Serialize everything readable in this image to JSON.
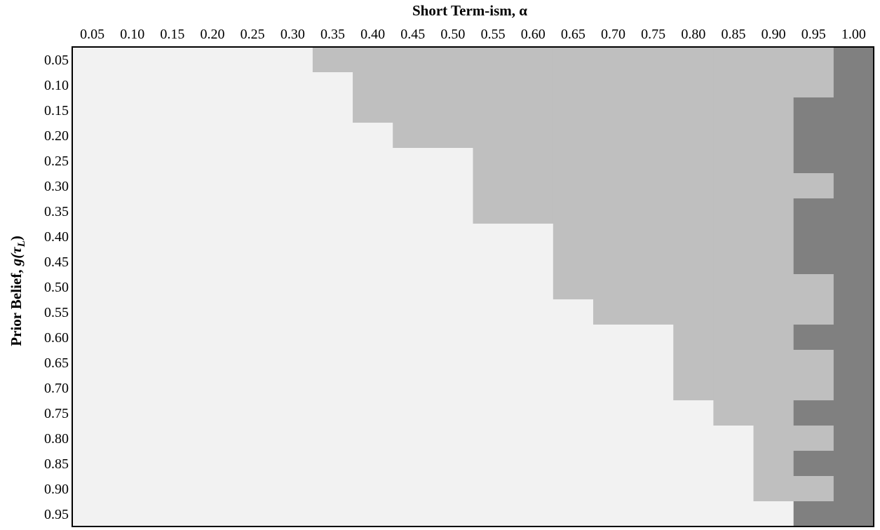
{
  "chart_data": {
    "type": "heatmap",
    "title": "",
    "xlabel": "Short Term-ism, α",
    "ylabel_text": "Prior Belief, ",
    "ylabel_math": "g(τ",
    "ylabel_sub": "L",
    "ylabel_close": ")",
    "x_position": "top",
    "legend": "none",
    "grid": false,
    "x": [
      "0.05",
      "0.10",
      "0.15",
      "0.20",
      "0.25",
      "0.30",
      "0.35",
      "0.40",
      "0.45",
      "0.50",
      "0.55",
      "0.60",
      "0.65",
      "0.70",
      "0.75",
      "0.80",
      "0.85",
      "0.90",
      "0.95",
      "1.00"
    ],
    "y": [
      "0.05",
      "0.10",
      "0.15",
      "0.20",
      "0.25",
      "0.30",
      "0.35",
      "0.40",
      "0.45",
      "0.50",
      "0.55",
      "0.60",
      "0.65",
      "0.70",
      "0.75",
      "0.80",
      "0.85",
      "0.90",
      "0.95"
    ],
    "levels": {
      "0": "#f2f2f2",
      "1": "#bfbfbf",
      "2": "#808080"
    },
    "values": [
      [
        0,
        0,
        0,
        0,
        0,
        0,
        1,
        1,
        1,
        1,
        1,
        1,
        1,
        1,
        1,
        1,
        1,
        1,
        1,
        2
      ],
      [
        0,
        0,
        0,
        0,
        0,
        0,
        0,
        1,
        1,
        1,
        1,
        1,
        1,
        1,
        1,
        1,
        1,
        1,
        1,
        2
      ],
      [
        0,
        0,
        0,
        0,
        0,
        0,
        0,
        1,
        1,
        1,
        1,
        1,
        1,
        1,
        1,
        1,
        1,
        1,
        2,
        2
      ],
      [
        0,
        0,
        0,
        0,
        0,
        0,
        0,
        0,
        1,
        1,
        1,
        1,
        1,
        1,
        1,
        1,
        1,
        1,
        2,
        2
      ],
      [
        0,
        0,
        0,
        0,
        0,
        0,
        0,
        0,
        0,
        0,
        1,
        1,
        1,
        1,
        1,
        1,
        1,
        1,
        2,
        2
      ],
      [
        0,
        0,
        0,
        0,
        0,
        0,
        0,
        0,
        0,
        0,
        1,
        1,
        1,
        1,
        1,
        1,
        1,
        1,
        1,
        2
      ],
      [
        0,
        0,
        0,
        0,
        0,
        0,
        0,
        0,
        0,
        0,
        1,
        1,
        1,
        1,
        1,
        1,
        1,
        1,
        2,
        2
      ],
      [
        0,
        0,
        0,
        0,
        0,
        0,
        0,
        0,
        0,
        0,
        0,
        0,
        1,
        1,
        1,
        1,
        1,
        1,
        2,
        2
      ],
      [
        0,
        0,
        0,
        0,
        0,
        0,
        0,
        0,
        0,
        0,
        0,
        0,
        1,
        1,
        1,
        1,
        1,
        1,
        2,
        2
      ],
      [
        0,
        0,
        0,
        0,
        0,
        0,
        0,
        0,
        0,
        0,
        0,
        0,
        1,
        1,
        1,
        1,
        1,
        1,
        1,
        2
      ],
      [
        0,
        0,
        0,
        0,
        0,
        0,
        0,
        0,
        0,
        0,
        0,
        0,
        0,
        1,
        1,
        1,
        1,
        1,
        1,
        2
      ],
      [
        0,
        0,
        0,
        0,
        0,
        0,
        0,
        0,
        0,
        0,
        0,
        0,
        0,
        0,
        0,
        1,
        1,
        1,
        2,
        2
      ],
      [
        0,
        0,
        0,
        0,
        0,
        0,
        0,
        0,
        0,
        0,
        0,
        0,
        0,
        0,
        0,
        1,
        1,
        1,
        1,
        2
      ],
      [
        0,
        0,
        0,
        0,
        0,
        0,
        0,
        0,
        0,
        0,
        0,
        0,
        0,
        0,
        0,
        1,
        1,
        1,
        1,
        2
      ],
      [
        0,
        0,
        0,
        0,
        0,
        0,
        0,
        0,
        0,
        0,
        0,
        0,
        0,
        0,
        0,
        0,
        1,
        1,
        2,
        2
      ],
      [
        0,
        0,
        0,
        0,
        0,
        0,
        0,
        0,
        0,
        0,
        0,
        0,
        0,
        0,
        0,
        0,
        0,
        1,
        1,
        2
      ],
      [
        0,
        0,
        0,
        0,
        0,
        0,
        0,
        0,
        0,
        0,
        0,
        0,
        0,
        0,
        0,
        0,
        0,
        1,
        2,
        2
      ],
      [
        0,
        0,
        0,
        0,
        0,
        0,
        0,
        0,
        0,
        0,
        0,
        0,
        0,
        0,
        0,
        0,
        0,
        1,
        1,
        2
      ],
      [
        0,
        0,
        0,
        0,
        0,
        0,
        0,
        0,
        0,
        0,
        0,
        0,
        0,
        0,
        0,
        0,
        0,
        0,
        2,
        2
      ]
    ]
  }
}
